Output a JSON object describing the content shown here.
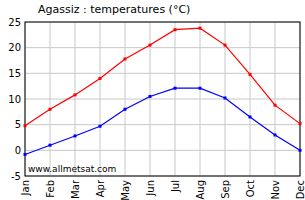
{
  "chart_data": {
    "type": "line",
    "title": "Agassiz : temperatures (°C)",
    "annotations": [
      "www.allmetsat.com"
    ],
    "categories": [
      "Jan",
      "Feb",
      "Mar",
      "Apr",
      "May",
      "Jun",
      "Jul",
      "Aug",
      "Sep",
      "Oct",
      "Nov",
      "Dec"
    ],
    "series": [
      {
        "color": "#ff0000",
        "marker": "square",
        "values": [
          4.8,
          8,
          10.8,
          14,
          17.8,
          20.5,
          23.5,
          23.8,
          20.5,
          14.8,
          8.8,
          5.2
        ]
      },
      {
        "color": "#0000ff",
        "marker": "square",
        "values": [
          -0.8,
          1,
          2.8,
          4.7,
          8,
          10.5,
          12.1,
          12.1,
          10.2,
          6.5,
          3,
          0
        ]
      }
    ],
    "ylim": [
      -5,
      25
    ],
    "yticks": [
      -5,
      0,
      5,
      10,
      15,
      20,
      25
    ],
    "grid": true
  }
}
